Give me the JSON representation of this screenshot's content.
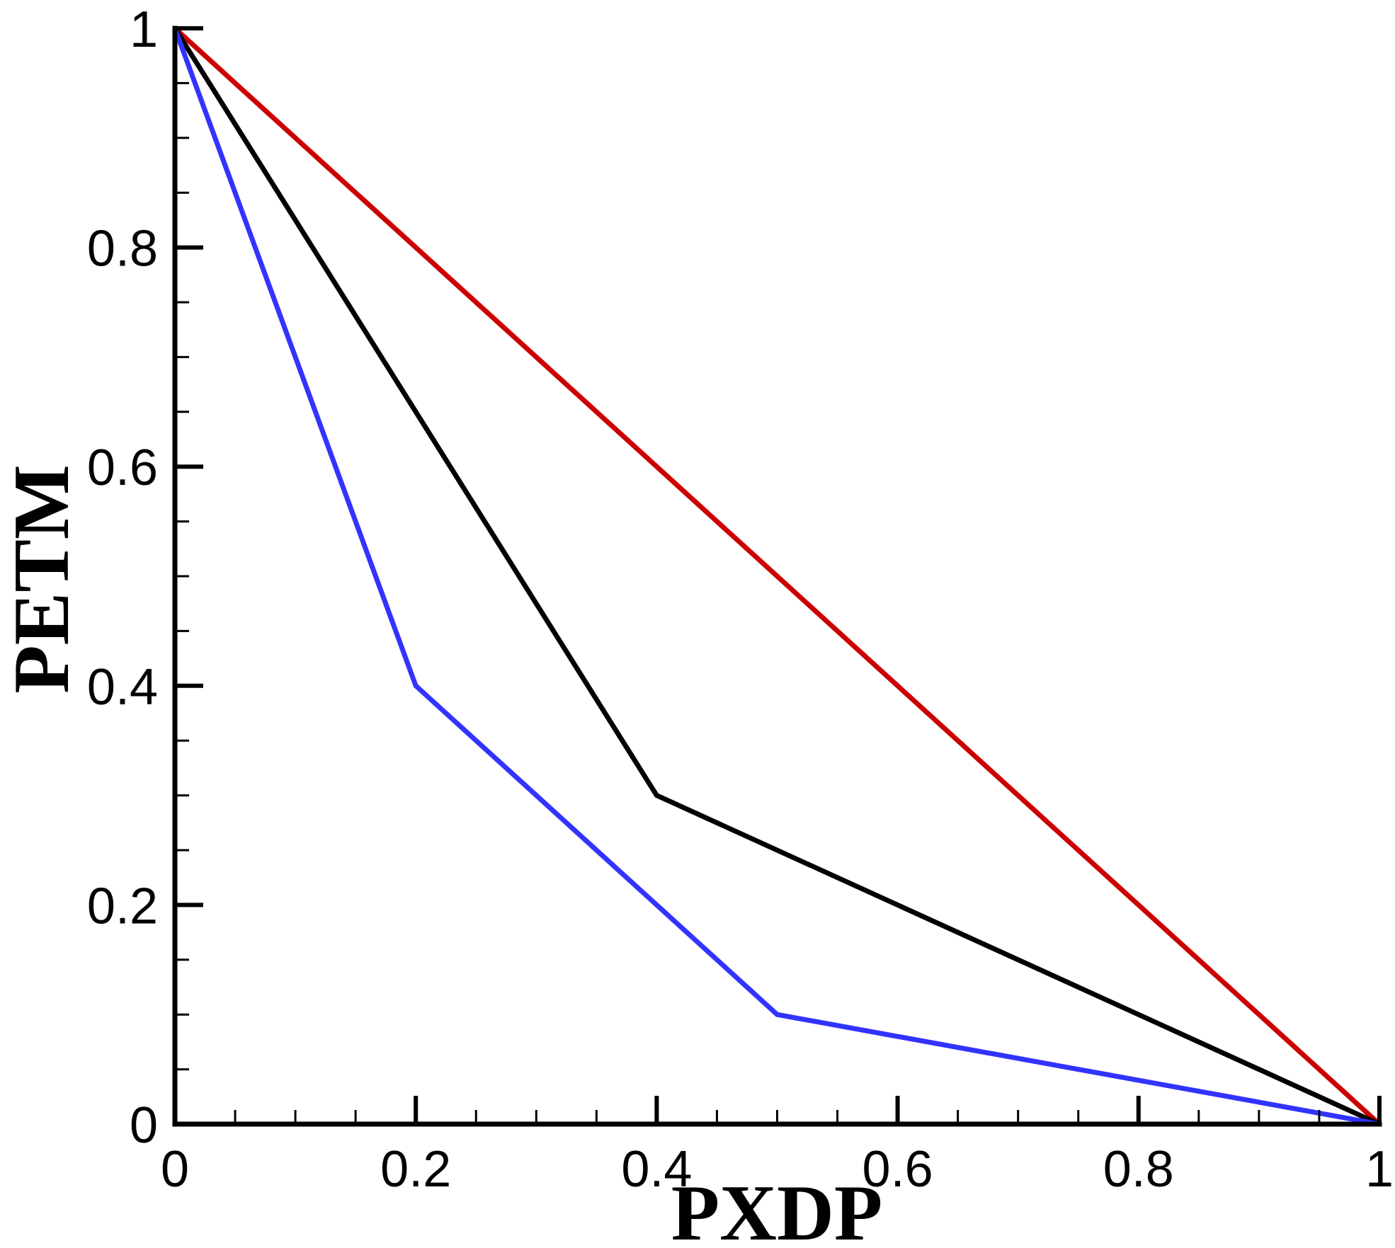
{
  "chart_data": {
    "type": "line",
    "xlabel": "PXDP",
    "ylabel": "PETM",
    "xlim": [
      0,
      1
    ],
    "ylim": [
      0,
      1
    ],
    "x_ticks": [
      0,
      0.2,
      0.4,
      0.6,
      0.8,
      1
    ],
    "x_tick_labels": [
      "0",
      "0.2",
      "0.4",
      "0.6",
      "0.8",
      "1"
    ],
    "y_ticks": [
      0,
      0.2,
      0.4,
      0.6,
      0.8,
      1
    ],
    "y_tick_labels": [
      "0",
      "0.2",
      "0.4",
      "0.6",
      "0.8",
      "1"
    ],
    "x_minor_step": 0.05,
    "y_minor_step": 0.05,
    "grid": false,
    "legend": "none",
    "series": [
      {
        "color": "#cc0000",
        "points": [
          [
            0,
            1
          ],
          [
            1,
            0
          ]
        ]
      },
      {
        "color": "#000000",
        "points": [
          [
            0,
            1
          ],
          [
            0.4,
            0.3
          ],
          [
            1,
            0
          ]
        ]
      },
      {
        "color": "#3333ff",
        "points": [
          [
            0,
            1
          ],
          [
            0.2,
            0.4
          ],
          [
            0.5,
            0.1
          ],
          [
            1,
            0
          ]
        ]
      }
    ]
  }
}
